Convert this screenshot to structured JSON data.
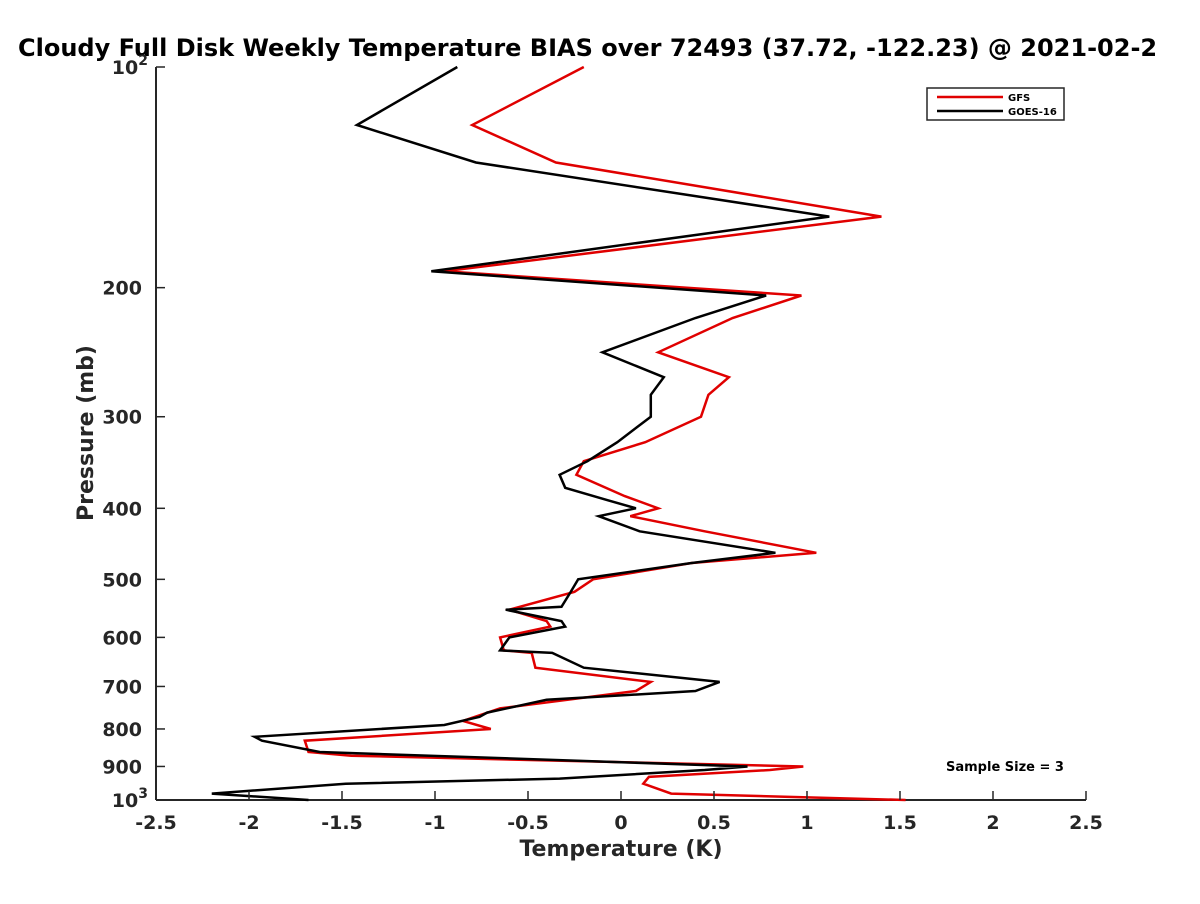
{
  "chart_data": {
    "type": "line",
    "title": "Cloudy Full Disk Weekly Temperature BIAS over 72493 (37.72, -122.23) @ 2021-02-2",
    "xlabel": "Temperature (K)",
    "ylabel": "Pressure (mb)",
    "xlim": [
      -2.5,
      2.5
    ],
    "ylim": [
      1000,
      100
    ],
    "yscale": "log",
    "grid": false,
    "legend_position": "top-right",
    "xticks": [
      -2.5,
      -2,
      -1.5,
      -1,
      -0.5,
      0,
      0.5,
      1,
      1.5,
      2,
      2.5
    ],
    "xtick_labels": [
      "-2.5",
      "-2",
      "-1.5",
      "-1",
      "-0.5",
      "0",
      "0.5",
      "1",
      "1.5",
      "2",
      "2.5"
    ],
    "yticks": [
      {
        "value": 100,
        "base": "10",
        "exp": "2"
      },
      {
        "value": 200,
        "label": "200"
      },
      {
        "value": 300,
        "label": "300"
      },
      {
        "value": 400,
        "label": "400"
      },
      {
        "value": 500,
        "label": "500"
      },
      {
        "value": 600,
        "label": "600"
      },
      {
        "value": 700,
        "label": "700"
      },
      {
        "value": 800,
        "label": "800"
      },
      {
        "value": 900,
        "label": "900"
      },
      {
        "value": 1000,
        "base": "10",
        "exp": "3"
      }
    ],
    "series": [
      {
        "name": "GFS",
        "color": "#e00000",
        "x": [
          -0.2,
          -0.8,
          -0.35,
          1.4,
          -0.95,
          0.97,
          0.6,
          0.2,
          0.58,
          0.47,
          0.43,
          0.13,
          -0.2,
          -0.24,
          0.02,
          0.2,
          0.05,
          0.45,
          1.05,
          0.38,
          -0.15,
          -0.25,
          -0.6,
          -0.4,
          -0.38,
          -0.65,
          -0.63,
          -0.48,
          -0.46,
          0.16,
          0.08,
          -0.65,
          -0.85,
          -0.7,
          -1.7,
          -1.68,
          -1.45,
          0.98,
          0.8,
          0.15,
          0.12,
          0.27,
          1.53
        ],
        "y": [
          100,
          120,
          135,
          160,
          190,
          205,
          220,
          245,
          265,
          280,
          300,
          325,
          345,
          360,
          385,
          400,
          410,
          430,
          460,
          475,
          500,
          520,
          550,
          570,
          580,
          600,
          625,
          630,
          660,
          690,
          710,
          750,
          780,
          800,
          830,
          860,
          870,
          900,
          910,
          930,
          950,
          980,
          1000
        ]
      },
      {
        "name": "GOES-16",
        "color": "#000000",
        "x": [
          -0.88,
          -1.42,
          -0.78,
          1.12,
          -1.02,
          0.78,
          0.4,
          -0.1,
          0.23,
          0.16,
          0.16,
          -0.02,
          -0.18,
          -0.33,
          -0.3,
          -0.07,
          0.08,
          -0.12,
          0.1,
          0.83,
          0.38,
          -0.23,
          -0.27,
          -0.32,
          -0.62,
          -0.32,
          -0.3,
          -0.6,
          -0.65,
          -0.37,
          -0.2,
          0.53,
          0.4,
          -0.4,
          -0.72,
          -0.76,
          -0.95,
          -1.97,
          -1.93,
          -1.62,
          0.68,
          0.45,
          -0.33,
          -1.48,
          -2.2,
          -1.68
        ],
        "y": [
          100,
          120,
          135,
          160,
          190,
          205,
          220,
          245,
          265,
          280,
          300,
          325,
          345,
          360,
          375,
          390,
          400,
          410,
          430,
          460,
          475,
          500,
          520,
          545,
          550,
          570,
          580,
          600,
          625,
          630,
          660,
          690,
          710,
          730,
          760,
          770,
          790,
          820,
          830,
          860,
          900,
          910,
          935,
          950,
          980,
          1000
        ]
      }
    ],
    "annotations": [
      {
        "text": "Sample Size = 3"
      }
    ]
  }
}
